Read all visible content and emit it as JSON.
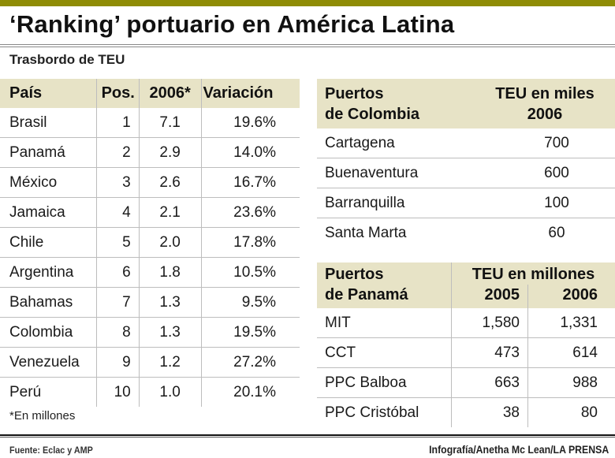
{
  "header": {
    "bar_color": "#8f8c05",
    "title": "‘Ranking’ portuario en América Latina",
    "subtitle": "Trasbordo de TEU"
  },
  "ranking_table": {
    "columns": [
      "País",
      "Pos.",
      "2006*",
      "Variación"
    ],
    "rows": [
      {
        "pais": "Brasil",
        "pos": "1",
        "teu_2006": "7.1",
        "variacion": "19.6%"
      },
      {
        "pais": "Panamá",
        "pos": "2",
        "teu_2006": "2.9",
        "variacion": "14.0%"
      },
      {
        "pais": "México",
        "pos": "3",
        "teu_2006": "2.6",
        "variacion": "16.7%"
      },
      {
        "pais": "Jamaica",
        "pos": "4",
        "teu_2006": "2.1",
        "variacion": "23.6%"
      },
      {
        "pais": "Chile",
        "pos": "5",
        "teu_2006": "2.0",
        "variacion": "17.8%"
      },
      {
        "pais": "Argentina",
        "pos": "6",
        "teu_2006": "1.8",
        "variacion": "10.5%"
      },
      {
        "pais": "Bahamas",
        "pos": "7",
        "teu_2006": "1.3",
        "variacion": "9.5%"
      },
      {
        "pais": "Colombia",
        "pos": "8",
        "teu_2006": "1.3",
        "variacion": "19.5%"
      },
      {
        "pais": "Venezuela",
        "pos": "9",
        "teu_2006": "1.2",
        "variacion": "27.2%"
      },
      {
        "pais": "Perú",
        "pos": "10",
        "teu_2006": "1.0",
        "variacion": "20.1%"
      }
    ],
    "footnote": "*En millones"
  },
  "colombia_table": {
    "header_name_line1": "Puertos",
    "header_name_line2": "de Colombia",
    "header_value_line1": "TEU en miles",
    "header_value_line2": "2006",
    "rows": [
      {
        "puerto": "Cartagena",
        "teu_2006": "700"
      },
      {
        "puerto": "Buenaventura",
        "teu_2006": "600"
      },
      {
        "puerto": "Barranquilla",
        "teu_2006": "100"
      },
      {
        "puerto": "Santa Marta",
        "teu_2006": "60"
      }
    ]
  },
  "panama_table": {
    "header_name_line1": "Puertos",
    "header_name_line2": "de Panamá",
    "header_group": "TEU en millones",
    "year1": "2005",
    "year2": "2006",
    "rows": [
      {
        "puerto": "MIT",
        "y2005": "1,580",
        "y2006": "1,331"
      },
      {
        "puerto": "CCT",
        "y2005": "473",
        "y2006": "614"
      },
      {
        "puerto": "PPC Balboa",
        "y2005": "663",
        "y2006": "988"
      },
      {
        "puerto": "PPC Cristóbal",
        "y2005": "38",
        "y2006": "80"
      }
    ]
  },
  "footer": {
    "source": "Fuente:  Eclac  y AMP",
    "credit": "Infografía/Anetha Mc Lean/LA PRENSA"
  },
  "colors": {
    "header_bg": "#e7e3c6",
    "rule": "#bdbdbd"
  }
}
